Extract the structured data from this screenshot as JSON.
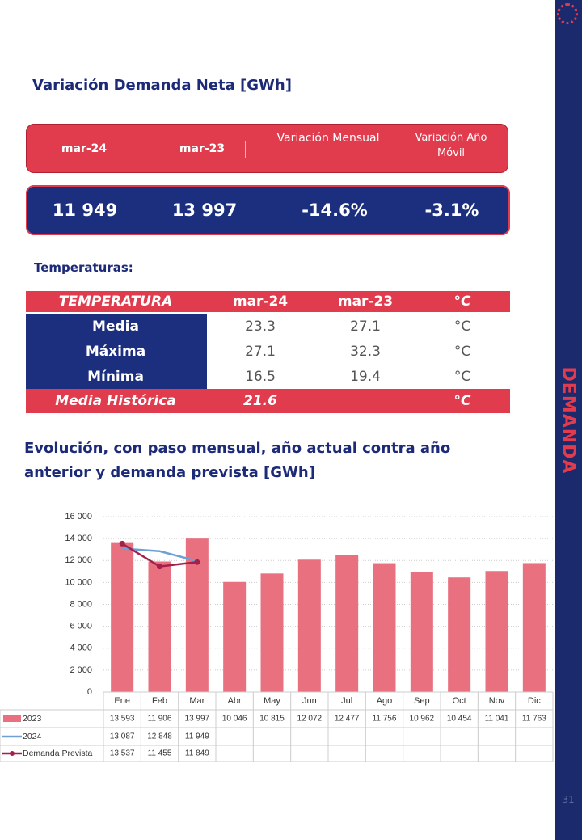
{
  "header": {
    "title": "Variación Demanda Neta [GWh]"
  },
  "summary": {
    "headers": [
      "mar-24",
      "mar-23",
      "Variación Mensual",
      "Variación Año Móvil"
    ],
    "values": [
      "11 949",
      "13 997",
      "-14.6%",
      "-3.1%"
    ]
  },
  "temperatures": {
    "title": "Temperaturas:",
    "header": [
      "TEMPERATURA",
      "mar-24",
      "mar-23",
      "°C"
    ],
    "rows": [
      [
        "Media",
        "23.3",
        "27.1",
        "°C"
      ],
      [
        "Máxima",
        "27.1",
        "32.3",
        "°C"
      ],
      [
        "Mínima",
        "16.5",
        "19.4",
        "°C"
      ]
    ],
    "footer": [
      "Media Histórica",
      "21.6",
      "°C"
    ]
  },
  "chart_data": {
    "type": "bar",
    "title": "Evolución, con paso mensual, año actual contra año anterior y demanda prevista [GWh]",
    "categories": [
      "Ene",
      "Feb",
      "Mar",
      "Abr",
      "May",
      "Jun",
      "Jul",
      "Ago",
      "Sep",
      "Oct",
      "Nov",
      "Dic"
    ],
    "series": [
      {
        "name": "2023",
        "type": "bar",
        "color": "#e8707f",
        "values": [
          13593,
          11906,
          13997,
          10046,
          10815,
          12072,
          12477,
          11756,
          10962,
          10454,
          11041,
          11763
        ],
        "value_labels": [
          "13 593",
          "11 906",
          "13 997",
          "10 046",
          "10 815",
          "12 072",
          "12 477",
          "11 756",
          "10 962",
          "10 454",
          "11 041",
          "11 763"
        ]
      },
      {
        "name": "2024",
        "type": "line",
        "color": "#6e9fd6",
        "values": [
          13087,
          12848,
          11949,
          null,
          null,
          null,
          null,
          null,
          null,
          null,
          null,
          null
        ],
        "value_labels": [
          "13 087",
          "12 848",
          "11 949",
          null,
          null,
          null,
          null,
          null,
          null,
          null,
          null,
          null
        ]
      },
      {
        "name": "Demanda Prevista",
        "type": "line",
        "color": "#a3204b",
        "markers": true,
        "values": [
          13537,
          11455,
          11849,
          null,
          null,
          null,
          null,
          null,
          null,
          null,
          null,
          null
        ],
        "value_labels": [
          "13 537",
          "11 455",
          "11 849",
          null,
          null,
          null,
          null,
          null,
          null,
          null,
          null,
          null
        ]
      }
    ],
    "ylim": [
      0,
      16000
    ],
    "yticks": [
      0,
      {
        "value": 2000,
        "label": "2 000"
      },
      {
        "value": 4000,
        "label": "4 000"
      },
      {
        "value": 6000,
        "label": "6 000"
      },
      {
        "value": 8000,
        "label": "8 000"
      },
      {
        "value": 10000,
        "label": "10 000"
      },
      {
        "value": 12000,
        "label": "12 000"
      },
      {
        "value": 14000,
        "label": "14 000"
      },
      {
        "value": 16000,
        "label": "16 000"
      }
    ],
    "grid": true
  },
  "sidebar": {
    "label": "DEMANDA",
    "page_number": "31"
  }
}
